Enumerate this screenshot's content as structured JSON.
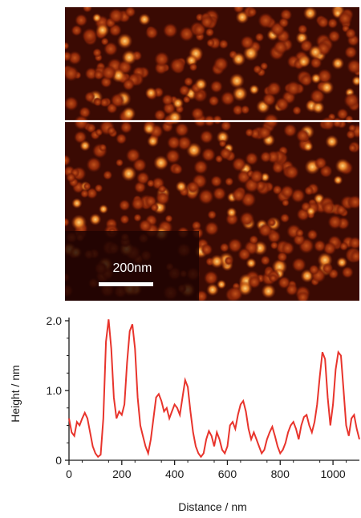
{
  "afm_image": {
    "scale_bar_label": "200nm",
    "colors": {
      "dark": "#2a0502",
      "mid": "#9a2a08",
      "bright": "#ffcc66",
      "line": "#ffffff"
    }
  },
  "chart_data": {
    "type": "line",
    "xlabel": "Distance / nm",
    "ylabel": "Height / nm",
    "xlim": [
      0,
      1100
    ],
    "ylim": [
      0,
      2.0
    ],
    "xticks": [
      0,
      200,
      400,
      600,
      800,
      1000
    ],
    "yticks": [
      0,
      1.0,
      2.0
    ],
    "ytick_labels": [
      "0",
      "1.0",
      "2.0"
    ],
    "grid": false,
    "line_color": "#e8342c",
    "series": [
      {
        "x": [
          0,
          10,
          20,
          30,
          40,
          50,
          60,
          70,
          80,
          90,
          100,
          110,
          120,
          130,
          140,
          150,
          160,
          170,
          180,
          190,
          200,
          210,
          220,
          230,
          240,
          250,
          260,
          270,
          280,
          290,
          300,
          310,
          320,
          330,
          340,
          350,
          360,
          370,
          380,
          390,
          400,
          410,
          420,
          430,
          440,
          450,
          460,
          470,
          480,
          490,
          500,
          510,
          520,
          530,
          540,
          550,
          560,
          570,
          580,
          590,
          600,
          610,
          620,
          630,
          640,
          650,
          660,
          670,
          680,
          690,
          700,
          710,
          720,
          730,
          740,
          750,
          760,
          770,
          780,
          790,
          800,
          810,
          820,
          830,
          840,
          850,
          860,
          870,
          880,
          890,
          900,
          910,
          920,
          930,
          940,
          950,
          960,
          970,
          980,
          990,
          1000,
          1010,
          1020,
          1030,
          1040,
          1050,
          1060,
          1070,
          1080,
          1090,
          1100
        ],
        "y": [
          0.6,
          0.4,
          0.35,
          0.55,
          0.5,
          0.6,
          0.68,
          0.6,
          0.4,
          0.2,
          0.1,
          0.05,
          0.08,
          0.6,
          1.7,
          2.02,
          1.6,
          0.9,
          0.6,
          0.7,
          0.65,
          0.8,
          1.4,
          1.85,
          1.95,
          1.6,
          0.9,
          0.5,
          0.35,
          0.2,
          0.1,
          0.3,
          0.6,
          0.9,
          0.95,
          0.85,
          0.7,
          0.75,
          0.6,
          0.7,
          0.8,
          0.75,
          0.65,
          0.9,
          1.15,
          1.05,
          0.7,
          0.4,
          0.2,
          0.1,
          0.05,
          0.1,
          0.3,
          0.42,
          0.35,
          0.2,
          0.4,
          0.3,
          0.15,
          0.1,
          0.2,
          0.5,
          0.55,
          0.45,
          0.65,
          0.8,
          0.85,
          0.7,
          0.45,
          0.3,
          0.4,
          0.3,
          0.2,
          0.1,
          0.15,
          0.3,
          0.4,
          0.48,
          0.35,
          0.2,
          0.1,
          0.15,
          0.25,
          0.4,
          0.5,
          0.55,
          0.45,
          0.3,
          0.5,
          0.62,
          0.65,
          0.5,
          0.4,
          0.55,
          0.8,
          1.2,
          1.55,
          1.45,
          0.9,
          0.5,
          0.8,
          1.3,
          1.55,
          1.5,
          1.0,
          0.5,
          0.35,
          0.6,
          0.65,
          0.45,
          0.3
        ]
      }
    ]
  }
}
